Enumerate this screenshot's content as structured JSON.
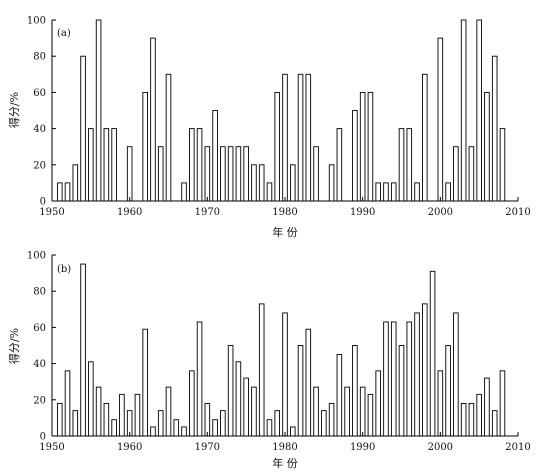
{
  "chart_data": [
    {
      "type": "bar",
      "panel_label": "(a)",
      "xlabel": "年  份",
      "ylabel": "得分/%",
      "xlim": [
        1950,
        2010
      ],
      "ylim": [
        0,
        100
      ],
      "xticks": [
        1950,
        1960,
        1970,
        1980,
        1990,
        2000,
        2010
      ],
      "yticks": [
        0,
        20,
        40,
        60,
        80,
        100
      ],
      "x": [
        1951,
        1952,
        1953,
        1954,
        1955,
        1956,
        1957,
        1958,
        1959,
        1960,
        1961,
        1962,
        1963,
        1964,
        1965,
        1966,
        1967,
        1968,
        1969,
        1970,
        1971,
        1972,
        1973,
        1974,
        1975,
        1976,
        1977,
        1978,
        1979,
        1980,
        1981,
        1982,
        1983,
        1984,
        1985,
        1986,
        1987,
        1988,
        1989,
        1990,
        1991,
        1992,
        1993,
        1994,
        1995,
        1996,
        1997,
        1998,
        1999,
        2000,
        2001,
        2002,
        2003,
        2004,
        2005,
        2006,
        2007,
        2008
      ],
      "values": [
        10,
        10,
        20,
        80,
        40,
        100,
        40,
        40,
        0,
        30,
        0,
        60,
        90,
        30,
        70,
        0,
        10,
        40,
        40,
        30,
        50,
        30,
        30,
        30,
        30,
        20,
        20,
        10,
        60,
        70,
        20,
        70,
        70,
        30,
        0,
        20,
        40,
        0,
        50,
        60,
        60,
        10,
        10,
        10,
        40,
        40,
        10,
        70,
        0,
        90,
        10,
        30,
        100,
        30,
        100,
        60,
        80,
        40
      ]
    },
    {
      "type": "bar",
      "panel_label": "(b)",
      "xlabel": "年  份",
      "ylabel": "得分/%",
      "xlim": [
        1950,
        2010
      ],
      "ylim": [
        0,
        100
      ],
      "xticks": [
        1950,
        1960,
        1970,
        1980,
        1990,
        2000,
        2010
      ],
      "yticks": [
        0,
        20,
        40,
        60,
        80,
        100
      ],
      "x": [
        1951,
        1952,
        1953,
        1954,
        1955,
        1956,
        1957,
        1958,
        1959,
        1960,
        1961,
        1962,
        1963,
        1964,
        1965,
        1966,
        1967,
        1968,
        1969,
        1970,
        1971,
        1972,
        1973,
        1974,
        1975,
        1976,
        1977,
        1978,
        1979,
        1980,
        1981,
        1982,
        1983,
        1984,
        1985,
        1986,
        1987,
        1988,
        1989,
        1990,
        1991,
        1992,
        1993,
        1994,
        1995,
        1996,
        1997,
        1998,
        1999,
        2000,
        2001,
        2002,
        2003,
        2004,
        2005,
        2006,
        2007,
        2008
      ],
      "values": [
        18,
        36,
        14,
        95,
        41,
        27,
        18,
        9,
        23,
        14,
        23,
        59,
        5,
        14,
        27,
        9,
        5,
        36,
        63,
        18,
        9,
        14,
        50,
        41,
        32,
        27,
        73,
        9,
        14,
        68,
        5,
        50,
        59,
        27,
        14,
        18,
        45,
        27,
        50,
        27,
        23,
        36,
        63,
        63,
        50,
        63,
        68,
        73,
        91,
        36,
        50,
        68,
        18,
        18,
        23,
        32,
        14,
        36
      ]
    }
  ]
}
